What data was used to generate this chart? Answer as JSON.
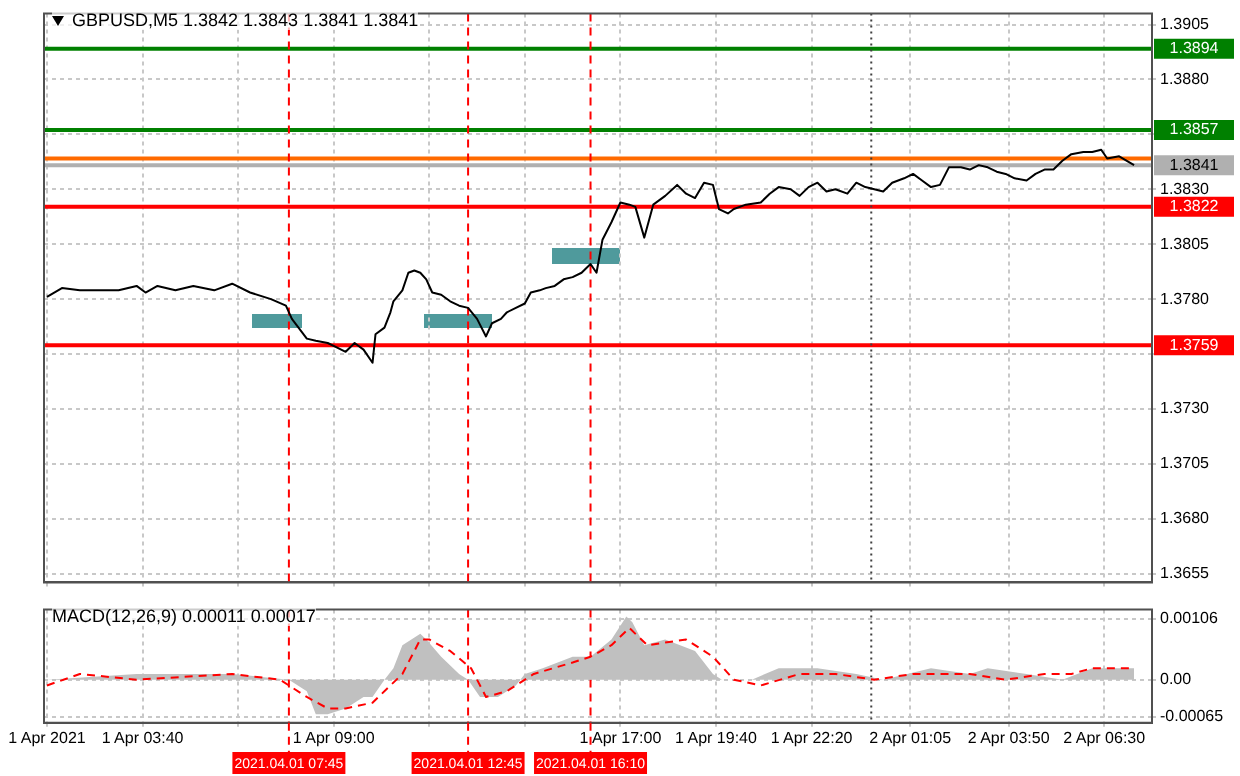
{
  "chart_data": [
    {
      "type": "line",
      "title": "GBPUSD,M5  1.3842 1.3843 1.3841 1.3841",
      "color": "#000000",
      "x": [
        "2021-04-01T01:00",
        "2021-04-01T01:25",
        "2021-04-01T01:55",
        "2021-04-01T02:30",
        "2021-04-01T03:00",
        "2021-04-01T03:30",
        "2021-04-01T03:45",
        "2021-04-01T04:05",
        "2021-04-01T04:35",
        "2021-04-01T05:05",
        "2021-04-01T05:40",
        "2021-04-01T06:10",
        "2021-04-01T06:40",
        "2021-04-01T07:15",
        "2021-04-01T07:40",
        "2021-04-01T07:50",
        "2021-04-01T08:15",
        "2021-04-01T08:30",
        "2021-04-01T08:50",
        "2021-04-01T09:05",
        "2021-04-01T09:20",
        "2021-04-01T09:35",
        "2021-04-01T09:50",
        "2021-04-01T10:05",
        "2021-04-01T10:10",
        "2021-04-01T10:25",
        "2021-04-01T10:35",
        "2021-04-01T10:40",
        "2021-04-01T10:55",
        "2021-04-01T11:05",
        "2021-04-01T11:15",
        "2021-04-01T11:25",
        "2021-04-01T11:35",
        "2021-04-01T11:45",
        "2021-04-01T12:00",
        "2021-04-01T12:15",
        "2021-04-01T12:30",
        "2021-04-01T12:45",
        "2021-04-01T13:00",
        "2021-04-01T13:15",
        "2021-04-01T13:25",
        "2021-04-01T13:40",
        "2021-04-01T13:50",
        "2021-04-01T14:05",
        "2021-04-01T14:20",
        "2021-04-01T14:30",
        "2021-04-01T14:45",
        "2021-04-01T14:55",
        "2021-04-01T15:10",
        "2021-04-01T15:25",
        "2021-04-01T15:40",
        "2021-04-01T15:55",
        "2021-04-01T16:10",
        "2021-04-01T16:20",
        "2021-04-01T16:30",
        "2021-04-01T16:45",
        "2021-04-01T17:00",
        "2021-04-01T17:15",
        "2021-04-01T17:25",
        "2021-04-01T17:40",
        "2021-04-01T17:55",
        "2021-04-01T18:15",
        "2021-04-01T18:35",
        "2021-04-01T18:50",
        "2021-04-01T19:05",
        "2021-04-01T19:20",
        "2021-04-01T19:35",
        "2021-04-01T19:45",
        "2021-04-01T20:00",
        "2021-04-01T20:10",
        "2021-04-01T20:30",
        "2021-04-01T20:55",
        "2021-04-01T21:10",
        "2021-04-01T21:25",
        "2021-04-01T21:45",
        "2021-04-01T22:00",
        "2021-04-01T22:15",
        "2021-04-01T22:30",
        "2021-04-01T22:45",
        "2021-04-01T23:00",
        "2021-04-01T23:20",
        "2021-04-01T23:35",
        "2021-04-01T23:50",
        "2021-04-02T00:05",
        "2021-04-02T00:20",
        "2021-04-02T00:35",
        "2021-04-02T00:55",
        "2021-04-02T01:10",
        "2021-04-02T01:25",
        "2021-04-02T01:40",
        "2021-04-02T01:55",
        "2021-04-02T02:10",
        "2021-04-02T02:30",
        "2021-04-02T02:45",
        "2021-04-02T03:00",
        "2021-04-02T03:15",
        "2021-04-02T03:30",
        "2021-04-02T03:45",
        "2021-04-02T04:00",
        "2021-04-02T04:20",
        "2021-04-02T04:35",
        "2021-04-02T04:50",
        "2021-04-02T05:05",
        "2021-04-02T05:20",
        "2021-04-02T05:35",
        "2021-04-02T05:55",
        "2021-04-02T06:10",
        "2021-04-02T06:25",
        "2021-04-02T06:35",
        "2021-04-02T06:55",
        "2021-04-02T07:20"
      ],
      "values": [
        1.3781,
        1.3785,
        1.3784,
        1.3784,
        1.3784,
        1.3786,
        1.3783,
        1.3786,
        1.3784,
        1.3786,
        1.3784,
        1.3787,
        1.3783,
        1.378,
        1.3777,
        1.3771,
        1.3762,
        1.3761,
        1.376,
        1.3758,
        1.3756,
        1.376,
        1.3757,
        1.3751,
        1.3764,
        1.3767,
        1.3774,
        1.3779,
        1.3784,
        1.3792,
        1.3793,
        1.3792,
        1.3789,
        1.3783,
        1.3782,
        1.3779,
        1.3777,
        1.3776,
        1.3771,
        1.3763,
        1.3769,
        1.3771,
        1.3774,
        1.3776,
        1.3778,
        1.3783,
        1.3784,
        1.3785,
        1.3786,
        1.3789,
        1.379,
        1.3792,
        1.3796,
        1.3792,
        1.3807,
        1.3815,
        1.3824,
        1.3823,
        1.3822,
        1.3808,
        1.3823,
        1.3827,
        1.3832,
        1.3828,
        1.3826,
        1.3833,
        1.3832,
        1.3821,
        1.3819,
        1.3821,
        1.3823,
        1.3824,
        1.3828,
        1.3831,
        1.383,
        1.3827,
        1.3831,
        1.3833,
        1.3829,
        1.383,
        1.3828,
        1.3833,
        1.3831,
        1.383,
        1.3829,
        1.3833,
        1.3835,
        1.3837,
        1.3834,
        1.3831,
        1.3832,
        1.384,
        1.384,
        1.3839,
        1.3841,
        1.384,
        1.3838,
        1.3837,
        1.3835,
        1.3834,
        1.3837,
        1.3839,
        1.3839,
        1.3843,
        1.3846,
        1.3847,
        1.3847,
        1.3848,
        1.3844,
        1.3845,
        1.3841
      ],
      "xlim": [
        "2021-04-01T00:55",
        "2021-04-02T07:50"
      ],
      "xticks": [
        {
          "value": "2021-04-01T01:00",
          "label": null
        },
        {
          "value": "2021-04-01T03:40",
          "label": null
        },
        {
          "value": "2021-04-01T06:20",
          "label": null
        },
        {
          "value": "2021-04-01T09:00",
          "label": null
        },
        {
          "value": "2021-04-01T11:40",
          "label": null
        },
        {
          "value": "2021-04-01T14:20",
          "label": null
        },
        {
          "value": "2021-04-01T17:00",
          "label": null
        },
        {
          "value": "2021-04-01T19:40",
          "label": null
        },
        {
          "value": "2021-04-01T22:20",
          "label": null
        },
        {
          "value": "2021-04-02T01:05",
          "label": null
        },
        {
          "value": "2021-04-02T03:50",
          "label": null
        },
        {
          "value": "2021-04-02T06:30",
          "label": null
        }
      ],
      "ylim": [
        1.3651,
        1.391
      ],
      "yticks": [
        1.3905,
        {
          "value": 1.388,
          "label": "1.3880"
        },
        {
          "value": 1.3855,
          "label": null
        },
        {
          "value": 1.383,
          "label": "1.3830"
        },
        1.3805,
        {
          "value": 1.378,
          "label": "1.3780"
        },
        {
          "value": 1.3755,
          "label": null
        },
        {
          "value": 1.373,
          "label": "1.3730"
        },
        1.3705,
        {
          "value": 1.368,
          "label": "1.3680"
        },
        1.3655
      ],
      "tick_labels": "y",
      "grid": true,
      "ref_lines": [
        {
          "axis": "y",
          "value": 1.3894,
          "label": "1.3894",
          "color": "#008000"
        },
        {
          "axis": "y",
          "value": 1.3857,
          "label": "1.3857",
          "color": "#008000"
        },
        {
          "axis": "y",
          "value": 1.3844,
          "label": null,
          "color": "#ff6a00"
        },
        {
          "axis": "y",
          "value": 1.3841,
          "label": "1.3841",
          "color": "#b0b0b0"
        },
        {
          "axis": "y",
          "value": 1.3822,
          "label": "1.3822",
          "color": "#ff0000"
        },
        {
          "axis": "y",
          "value": 1.3759,
          "label": "1.3759",
          "color": "#ff0000"
        },
        {
          "axis": "x",
          "value": "2021-04-01T07:45",
          "label": null,
          "color": "#ff0000",
          "line_style": "dashed"
        },
        {
          "axis": "x",
          "value": "2021-04-01T12:45",
          "label": null,
          "color": "#ff0000",
          "line_style": "dashed"
        },
        {
          "axis": "x",
          "value": "2021-04-01T16:10",
          "label": null,
          "color": "#ff0000",
          "line_style": "dashed"
        },
        {
          "axis": "x",
          "value": "2021-04-02T00:00",
          "label": null,
          "color": "#404040",
          "line_style": "dotted"
        }
      ]
    },
    {
      "type": "line",
      "title": "MACD(12,26,9) 0.00011 0.00017",
      "series": [
        {
          "type": "area",
          "color": "#c0c0c0",
          "x": [
            "2021-04-01T01:00",
            "2021-04-01T03:30",
            "2021-04-01T06:10",
            "2021-04-01T07:45",
            "2021-04-01T08:15",
            "2021-04-01T08:30",
            "2021-04-01T08:50",
            "2021-04-01T09:20",
            "2021-04-01T09:50",
            "2021-04-01T10:05",
            "2021-04-01T10:25",
            "2021-04-01T10:40",
            "2021-04-01T10:55",
            "2021-04-01T11:25",
            "2021-04-01T11:35",
            "2021-04-01T12:00",
            "2021-04-01T12:30",
            "2021-04-01T12:45",
            "2021-04-01T13:05",
            "2021-04-01T13:35",
            "2021-04-01T14:05",
            "2021-04-01T14:20",
            "2021-04-01T14:50",
            "2021-04-01T15:40",
            "2021-04-01T16:10",
            "2021-04-01T16:45",
            "2021-04-01T17:10",
            "2021-04-01T17:20",
            "2021-04-01T17:40",
            "2021-04-01T18:15",
            "2021-04-01T19:05",
            "2021-04-01T19:35",
            "2021-04-01T19:50",
            "2021-04-01T20:40",
            "2021-04-01T21:25",
            "2021-04-01T22:30",
            "2021-04-01T23:35",
            "2021-04-02T00:20",
            "2021-04-02T01:40",
            "2021-04-02T02:45",
            "2021-04-02T03:15",
            "2021-04-02T04:20",
            "2021-04-02T05:20",
            "2021-04-02T06:10",
            "2021-04-02T06:55",
            "2021-04-02T07:20"
          ],
          "values": [
            0,
            0.0001,
            0.0001,
            0,
            -0.0002,
            -0.0006,
            -0.0006,
            -0.0005,
            -0.0003,
            -0.0003,
            0,
            0.0002,
            0.0006,
            0.0008,
            0.0007,
            0.0004,
            0.0001,
            0,
            -0.0003,
            -0.0003,
            -0.0001,
            0.0001,
            0.0002,
            0.0004,
            0.0004,
            0.0007,
            0.0011,
            0.001,
            0.0006,
            0.0007,
            0.0005,
            0.0001,
            0,
            0,
            0.0002,
            0.0002,
            0.0001,
            0,
            0.0002,
            0.0001,
            0.0002,
            0.0001,
            0,
            0.0002,
            0.0002,
            0.0002
          ]
        },
        {
          "type": "line",
          "color": "#ff0000",
          "line_style": "dashed",
          "x": [
            "2021-04-01T01:00",
            "2021-04-01T01:55",
            "2021-04-01T03:30",
            "2021-04-01T06:10",
            "2021-04-01T07:30",
            "2021-04-01T08:15",
            "2021-04-01T08:50",
            "2021-04-01T09:20",
            "2021-04-01T10:05",
            "2021-04-01T10:55",
            "2021-04-01T11:25",
            "2021-04-01T11:40",
            "2021-04-01T12:15",
            "2021-04-01T12:50",
            "2021-04-01T13:15",
            "2021-04-01T13:50",
            "2021-04-01T14:35",
            "2021-04-01T15:40",
            "2021-04-01T16:10",
            "2021-04-01T16:45",
            "2021-04-01T17:15",
            "2021-04-01T17:45",
            "2021-04-01T18:50",
            "2021-04-01T19:35",
            "2021-04-01T20:10",
            "2021-04-01T20:55",
            "2021-04-01T22:00",
            "2021-04-01T23:00",
            "2021-04-02T00:05",
            "2021-04-02T01:10",
            "2021-04-02T02:45",
            "2021-04-02T03:45",
            "2021-04-02T04:50",
            "2021-04-02T05:35",
            "2021-04-02T06:10",
            "2021-04-02T06:55",
            "2021-04-02T07:20"
          ],
          "values": [
            -0.0001,
            0.0001,
            0,
            0.0001,
            0,
            -0.0003,
            -0.0005,
            -0.0005,
            -0.0004,
            0.0001,
            0.0007,
            0.0007,
            0.0005,
            0.0002,
            -0.0003,
            -0.0002,
            0.0001,
            0.0003,
            0.0004,
            0.0006,
            0.0009,
            0.0006,
            0.0007,
            0.0004,
            0,
            -0.0001,
            0.0001,
            0.0001,
            0,
            0.0001,
            0.0001,
            0,
            0.0001,
            0.0001,
            0.0002,
            0.0002,
            0.0002
          ]
        }
      ],
      "xlim": [
        "2021-04-01T00:55",
        "2021-04-02T07:50"
      ],
      "xticks": [
        {
          "value": "2021-04-01T01:00",
          "label": "1 Apr 2021"
        },
        {
          "value": "2021-04-01T03:40",
          "label": "1 Apr 03:40"
        },
        {
          "value": "2021-04-01T06:20",
          "label": null
        },
        {
          "value": "2021-04-01T09:00",
          "label": "1 Apr 09:00"
        },
        {
          "value": "2021-04-01T11:40",
          "label": null
        },
        {
          "value": "2021-04-01T14:20",
          "label": null
        },
        {
          "value": "2021-04-01T17:00",
          "label": "1 Apr 17:00"
        },
        {
          "value": "2021-04-01T19:40",
          "label": "1 Apr 19:40"
        },
        {
          "value": "2021-04-01T22:20",
          "label": "1 Apr 22:20"
        },
        {
          "value": "2021-04-02T01:05",
          "label": "2 Apr 01:05"
        },
        {
          "value": "2021-04-02T03:50",
          "label": "2 Apr 03:50"
        },
        {
          "value": "2021-04-02T06:30",
          "label": "2 Apr 06:30"
        }
      ],
      "ylim": [
        -0.00075,
        0.00122
      ],
      "yticks": [
        0.00106,
        {
          "value": 0,
          "label": "0.00"
        },
        -0.00065
      ],
      "grid": true,
      "ref_lines": [
        {
          "axis": "x",
          "value": "2021-04-01T07:45",
          "label": "2021.04.01 07:45",
          "color": "#ff0000",
          "line_style": "dashed"
        },
        {
          "axis": "x",
          "value": "2021-04-01T12:45",
          "label": "2021.04.01 12:45",
          "color": "#ff0000",
          "line_style": "dashed"
        },
        {
          "axis": "x",
          "value": "2021-04-01T16:10",
          "label": "2021.04.01 16:10",
          "color": "#ff0000",
          "line_style": "dashed"
        },
        {
          "axis": "x",
          "value": "2021-04-02T00:00",
          "label": null,
          "color": "#404040",
          "line_style": "dotted"
        }
      ]
    }
  ]
}
